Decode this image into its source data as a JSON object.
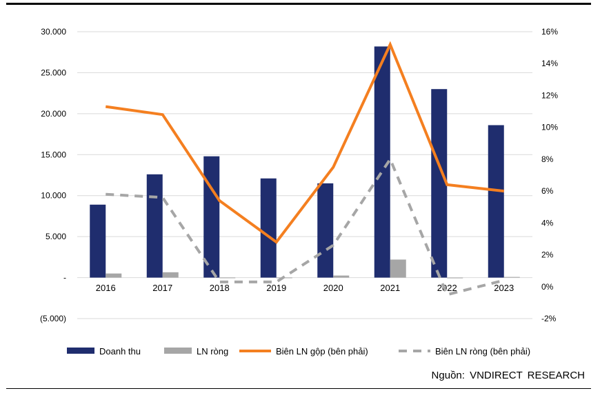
{
  "source": "Nguồn:  VNDIRECT  RESEARCH",
  "chart_data": {
    "type": "bar",
    "title": "",
    "categories": [
      "2016",
      "2017",
      "2018",
      "2019",
      "2020",
      "2021",
      "2022",
      "2023"
    ],
    "y_left": {
      "range": [
        -5000,
        30000
      ],
      "ticks": [
        -5000,
        0,
        5000,
        10000,
        15000,
        20000,
        25000,
        30000
      ],
      "tick_labels": [
        "(5.000)",
        "-",
        "5.000",
        "10.000",
        "15.000",
        "20.000",
        "25.000",
        "30.000"
      ],
      "grid": true
    },
    "y_right": {
      "range": [
        -2,
        16
      ],
      "ticks": [
        -2,
        0,
        2,
        4,
        6,
        8,
        10,
        12,
        14,
        16
      ],
      "tick_labels": [
        "-2%",
        "0%",
        "2%",
        "4%",
        "6%",
        "8%",
        "10%",
        "12%",
        "14%",
        "16%"
      ]
    },
    "series": [
      {
        "name": "Doanh thu",
        "type": "bar",
        "axis": "left",
        "color": "#1f2d6e",
        "values": [
          8900,
          12600,
          14800,
          12100,
          11500,
          28200,
          23000,
          18600
        ]
      },
      {
        "name": "LN ròng",
        "type": "bar",
        "axis": "left",
        "color": "#a6a6a6",
        "values": [
          500,
          650,
          10,
          10,
          250,
          2200,
          -80,
          80
        ]
      },
      {
        "name": "Biên LN gộp (bên phải)",
        "type": "line",
        "axis": "right",
        "color": "#f47f20",
        "dash": "solid",
        "values": [
          11.3,
          10.8,
          5.4,
          2.8,
          7.5,
          15.2,
          6.4,
          6.0
        ]
      },
      {
        "name": "Biên LN ròng (bên phải)",
        "type": "line",
        "axis": "right",
        "color": "#a6a6a6",
        "dash": "dashed",
        "values": [
          5.8,
          5.6,
          0.3,
          0.3,
          2.6,
          8.0,
          -0.5,
          0.4
        ]
      }
    ],
    "legend": "bottom",
    "grid": true
  }
}
